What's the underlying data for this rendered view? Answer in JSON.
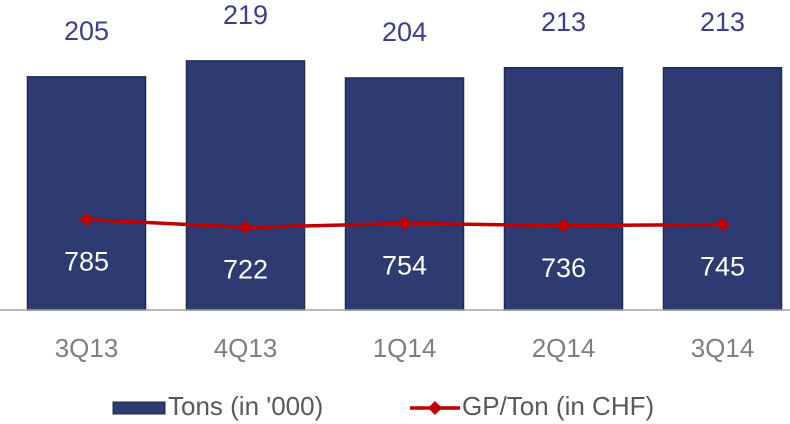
{
  "chart_data": {
    "type": "bar",
    "categories": [
      "3Q13",
      "4Q13",
      "1Q14",
      "2Q14",
      "3Q14"
    ],
    "series": [
      {
        "name": "Tons (in '000)",
        "type": "bar",
        "color": "#2e3b72",
        "values": [
          205,
          219,
          204,
          213,
          213
        ]
      },
      {
        "name": "GP/Ton (in CHF)",
        "type": "line",
        "axis": "y2",
        "color": "#c00000",
        "values": [
          785,
          722,
          754,
          736,
          745
        ]
      }
    ],
    "ylim": [
      0,
      255
    ],
    "y2lim": [
      70,
      2360
    ],
    "grid": false,
    "legend": "bottom"
  }
}
